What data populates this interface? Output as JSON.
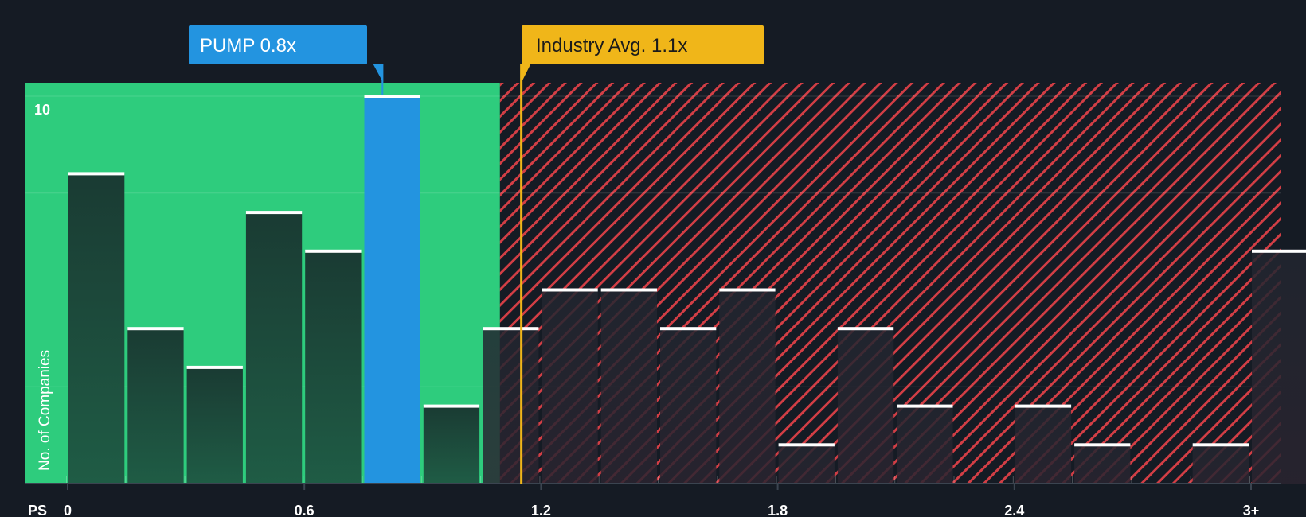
{
  "chart_data": {
    "type": "bar",
    "title": "",
    "xlabel": "PS",
    "ylabel": "No. of Companies",
    "ylim": [
      0,
      10
    ],
    "xlim": [
      0,
      3.0
    ],
    "bin_width": 0.15,
    "x_ticks": [
      "0",
      "0.6",
      "1.2",
      "1.8",
      "2.4",
      "3+"
    ],
    "x_tick_values": [
      0,
      0.6,
      1.2,
      1.8,
      2.4,
      3.0
    ],
    "y_ticks": [
      "10"
    ],
    "y_tick_values": [
      10
    ],
    "y_gridlines": [
      2.5,
      5,
      7.5,
      10
    ],
    "bins": [
      {
        "start": 0.0,
        "value": 8
      },
      {
        "start": 0.15,
        "value": 4
      },
      {
        "start": 0.3,
        "value": 3
      },
      {
        "start": 0.45,
        "value": 7
      },
      {
        "start": 0.6,
        "value": 6
      },
      {
        "start": 0.75,
        "value": 10,
        "highlight": true
      },
      {
        "start": 0.9,
        "value": 2
      },
      {
        "start": 1.05,
        "value": 4
      },
      {
        "start": 1.2,
        "value": 5
      },
      {
        "start": 1.35,
        "value": 5
      },
      {
        "start": 1.5,
        "value": 4
      },
      {
        "start": 1.65,
        "value": 5
      },
      {
        "start": 1.8,
        "value": 1
      },
      {
        "start": 1.95,
        "value": 4
      },
      {
        "start": 2.1,
        "value": 2
      },
      {
        "start": 2.25,
        "value": 0
      },
      {
        "start": 2.4,
        "value": 2
      },
      {
        "start": 2.55,
        "value": 1
      },
      {
        "start": 2.7,
        "value": 0
      },
      {
        "start": 2.85,
        "value": 1
      },
      {
        "start": 3.0,
        "value": 6
      }
    ],
    "fair_zone_upper": 1.1,
    "company": {
      "label": "PUMP 0.8x",
      "value": 0.8
    },
    "industry": {
      "label": "Industry Avg. 1.1x",
      "value": 1.15
    }
  },
  "colors": {
    "background": "#151b24",
    "fair_zone": "#2ecc7d",
    "expensive_stripe": "#d23e45",
    "bar_fill_dark": "#1a3b33",
    "bar_highlight": "#2394e0",
    "bar_top": "#ffffff",
    "company_callout": "#2394e0",
    "industry_callout": "#f0b619",
    "industry_line": "#f0b619"
  }
}
